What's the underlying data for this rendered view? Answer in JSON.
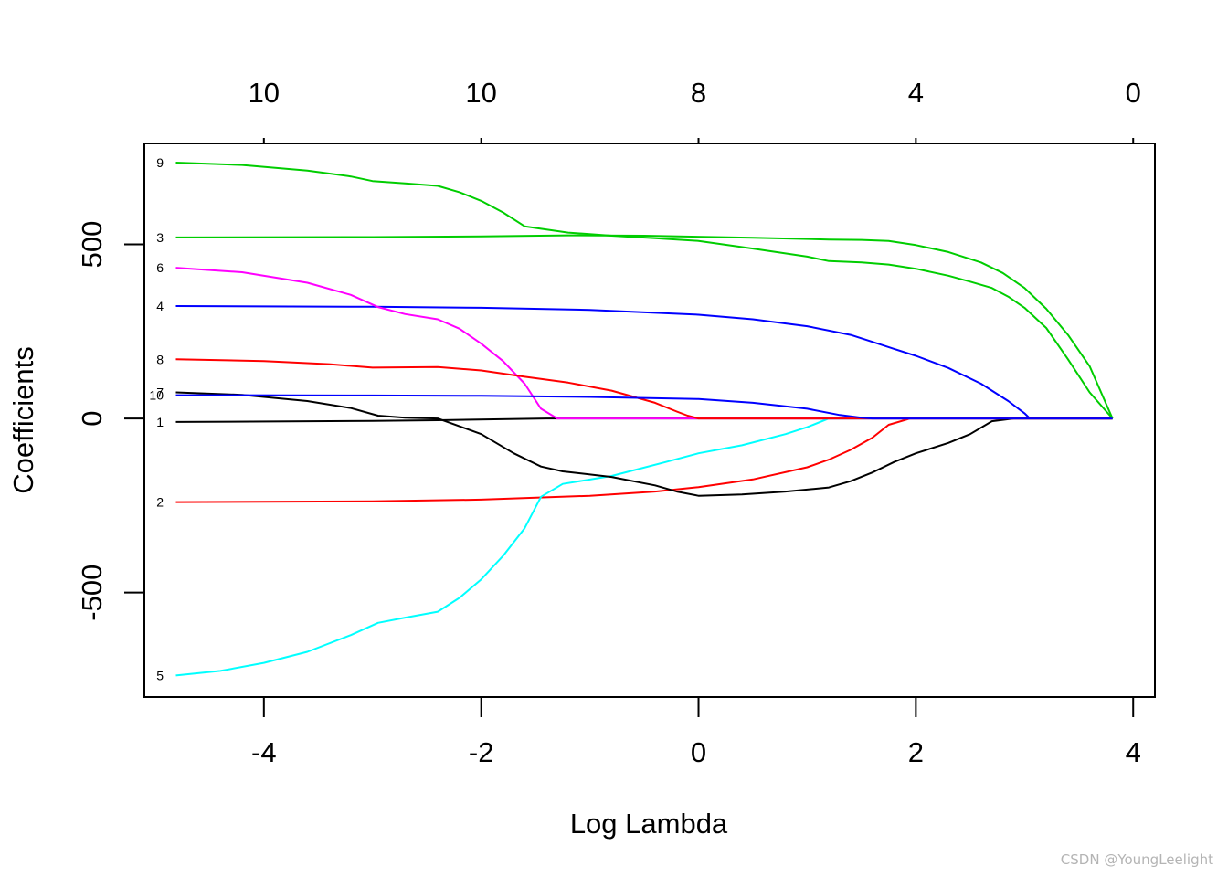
{
  "chart_data": {
    "type": "line",
    "title": "",
    "xlabel": "Log Lambda",
    "ylabel": "Coefficients",
    "xlim": [
      -5.1,
      4.2
    ],
    "ylim": [
      -800,
      790
    ],
    "x_ticks": [
      -4,
      -2,
      0,
      2,
      4
    ],
    "x_tick_labels": [
      "-4",
      "-2",
      "0",
      "2",
      "4"
    ],
    "y_ticks": [
      -500,
      0,
      500
    ],
    "y_tick_labels": [
      "-500",
      "0",
      "500"
    ],
    "top_ticks": [
      -4,
      -2,
      0,
      2,
      4
    ],
    "top_tick_labels": [
      "10",
      "10",
      "8",
      "4",
      "0"
    ],
    "colors": {
      "black": "#000000",
      "red": "#ff0000",
      "green": "#00cd00",
      "blue": "#0000ff",
      "cyan": "#00ffff",
      "magenta": "#ff00ff"
    },
    "series": [
      {
        "name": "1",
        "label": "1",
        "color": "#000000",
        "label_y": -10,
        "points": [
          [
            -4.81,
            -10
          ],
          [
            -3.0,
            -7
          ],
          [
            -2.4,
            -5
          ],
          [
            -1.4,
            0
          ],
          [
            3.81,
            0
          ]
        ]
      },
      {
        "name": "2",
        "label": "2",
        "color": "#ff0000",
        "label_y": -240,
        "points": [
          [
            -4.81,
            -240
          ],
          [
            -3.0,
            -238
          ],
          [
            -2.0,
            -233
          ],
          [
            -1.0,
            -222
          ],
          [
            -0.4,
            -210
          ],
          [
            0.0,
            -197
          ],
          [
            0.5,
            -175
          ],
          [
            1.0,
            -140
          ],
          [
            1.2,
            -118
          ],
          [
            1.4,
            -90
          ],
          [
            1.6,
            -55
          ],
          [
            1.75,
            -18
          ],
          [
            1.95,
            0
          ],
          [
            3.81,
            0
          ]
        ]
      },
      {
        "name": "3",
        "label": "3",
        "color": "#00cd00",
        "label_y": 520,
        "points": [
          [
            -4.81,
            520
          ],
          [
            -3.0,
            521
          ],
          [
            -2.0,
            523
          ],
          [
            -1.2,
            526
          ],
          [
            -0.5,
            525
          ],
          [
            0.5,
            519
          ],
          [
            1.2,
            514
          ],
          [
            1.5,
            513
          ],
          [
            1.75,
            510
          ],
          [
            2.0,
            498
          ],
          [
            2.3,
            478
          ],
          [
            2.6,
            448
          ],
          [
            2.8,
            418
          ],
          [
            3.0,
            375
          ],
          [
            3.2,
            315
          ],
          [
            3.4,
            240
          ],
          [
            3.6,
            150
          ],
          [
            3.81,
            0
          ]
        ]
      },
      {
        "name": "4",
        "label": "4",
        "color": "#0000ff",
        "label_y": 323,
        "points": [
          [
            -4.81,
            323
          ],
          [
            -3.0,
            321
          ],
          [
            -2.0,
            318
          ],
          [
            -1.0,
            312
          ],
          [
            0.0,
            298
          ],
          [
            0.5,
            285
          ],
          [
            1.0,
            265
          ],
          [
            1.4,
            240
          ],
          [
            1.6,
            220
          ],
          [
            1.8,
            200
          ],
          [
            2.0,
            180
          ],
          [
            2.3,
            145
          ],
          [
            2.6,
            100
          ],
          [
            2.85,
            50
          ],
          [
            3.0,
            15
          ],
          [
            3.05,
            0
          ],
          [
            3.81,
            0
          ]
        ]
      },
      {
        "name": "5",
        "label": "5",
        "color": "#00ffff",
        "label_y": -738,
        "points": [
          [
            -4.81,
            -738
          ],
          [
            -4.4,
            -725
          ],
          [
            -4.0,
            -702
          ],
          [
            -3.6,
            -670
          ],
          [
            -3.2,
            -622
          ],
          [
            -2.95,
            -587
          ],
          [
            -2.7,
            -572
          ],
          [
            -2.4,
            -555
          ],
          [
            -2.2,
            -515
          ],
          [
            -2.0,
            -462
          ],
          [
            -1.8,
            -395
          ],
          [
            -1.6,
            -315
          ],
          [
            -1.45,
            -225
          ],
          [
            -1.25,
            -188
          ],
          [
            -0.8,
            -165
          ],
          [
            -0.3,
            -125
          ],
          [
            0.0,
            -100
          ],
          [
            0.4,
            -77
          ],
          [
            0.8,
            -45
          ],
          [
            1.0,
            -25
          ],
          [
            1.2,
            0
          ],
          [
            3.81,
            0
          ]
        ]
      },
      {
        "name": "6",
        "label": "6",
        "color": "#ff00ff",
        "label_y": 433,
        "points": [
          [
            -4.81,
            433
          ],
          [
            -4.2,
            420
          ],
          [
            -3.6,
            390
          ],
          [
            -3.2,
            355
          ],
          [
            -2.95,
            320
          ],
          [
            -2.7,
            300
          ],
          [
            -2.4,
            285
          ],
          [
            -2.2,
            258
          ],
          [
            -2.0,
            215
          ],
          [
            -1.8,
            165
          ],
          [
            -1.6,
            100
          ],
          [
            -1.45,
            28
          ],
          [
            -1.3,
            0
          ],
          [
            3.81,
            0
          ]
        ]
      },
      {
        "name": "7",
        "label": "7",
        "color": "#000000",
        "label_y": 75,
        "points": [
          [
            -4.81,
            75
          ],
          [
            -4.2,
            68
          ],
          [
            -3.6,
            50
          ],
          [
            -3.2,
            30
          ],
          [
            -2.95,
            8
          ],
          [
            -2.7,
            2
          ],
          [
            -2.4,
            0
          ],
          [
            -2.0,
            -45
          ],
          [
            -1.7,
            -100
          ],
          [
            -1.45,
            -138
          ],
          [
            -1.25,
            -152
          ],
          [
            -0.8,
            -168
          ],
          [
            -0.4,
            -192
          ],
          [
            -0.2,
            -210
          ],
          [
            0.0,
            -222
          ],
          [
            0.4,
            -218
          ],
          [
            0.8,
            -210
          ],
          [
            1.2,
            -198
          ],
          [
            1.4,
            -180
          ],
          [
            1.6,
            -155
          ],
          [
            1.8,
            -125
          ],
          [
            2.0,
            -100
          ],
          [
            2.3,
            -70
          ],
          [
            2.5,
            -45
          ],
          [
            2.7,
            -8
          ],
          [
            2.9,
            0
          ],
          [
            3.81,
            0
          ]
        ]
      },
      {
        "name": "8",
        "label": "8",
        "color": "#ff0000",
        "label_y": 170,
        "points": [
          [
            -4.81,
            170
          ],
          [
            -4.0,
            165
          ],
          [
            -3.4,
            156
          ],
          [
            -3.0,
            146
          ],
          [
            -2.4,
            148
          ],
          [
            -2.0,
            138
          ],
          [
            -1.6,
            120
          ],
          [
            -1.2,
            103
          ],
          [
            -0.8,
            80
          ],
          [
            -0.4,
            45
          ],
          [
            -0.2,
            20
          ],
          [
            -0.1,
            8
          ],
          [
            0.0,
            0
          ],
          [
            3.81,
            0
          ]
        ]
      },
      {
        "name": "9",
        "label": "9",
        "color": "#00cd00",
        "label_y": 735,
        "points": [
          [
            -4.81,
            735
          ],
          [
            -4.2,
            728
          ],
          [
            -3.6,
            712
          ],
          [
            -3.2,
            695
          ],
          [
            -3.0,
            682
          ],
          [
            -2.7,
            675
          ],
          [
            -2.4,
            668
          ],
          [
            -2.2,
            650
          ],
          [
            -2.0,
            625
          ],
          [
            -1.8,
            592
          ],
          [
            -1.6,
            552
          ],
          [
            -1.45,
            545
          ],
          [
            -1.2,
            534
          ],
          [
            -0.8,
            525
          ],
          [
            -0.4,
            518
          ],
          [
            0.0,
            510
          ],
          [
            0.5,
            488
          ],
          [
            1.0,
            465
          ],
          [
            1.2,
            452
          ],
          [
            1.5,
            448
          ],
          [
            1.75,
            442
          ],
          [
            2.0,
            430
          ],
          [
            2.3,
            410
          ],
          [
            2.5,
            393
          ],
          [
            2.7,
            375
          ],
          [
            2.85,
            350
          ],
          [
            3.0,
            318
          ],
          [
            3.2,
            260
          ],
          [
            3.4,
            170
          ],
          [
            3.6,
            75
          ],
          [
            3.81,
            0
          ]
        ]
      },
      {
        "name": "10",
        "label": "10",
        "color": "#0000ff",
        "label_y": 67,
        "points": [
          [
            -4.81,
            67
          ],
          [
            -3.0,
            66
          ],
          [
            -2.0,
            65
          ],
          [
            -1.0,
            62
          ],
          [
            0.0,
            56
          ],
          [
            0.5,
            45
          ],
          [
            1.0,
            28
          ],
          [
            1.3,
            10
          ],
          [
            1.5,
            2
          ],
          [
            1.6,
            0
          ],
          [
            3.81,
            0
          ]
        ]
      }
    ]
  },
  "watermark": "CSDN @YoungLeelight"
}
